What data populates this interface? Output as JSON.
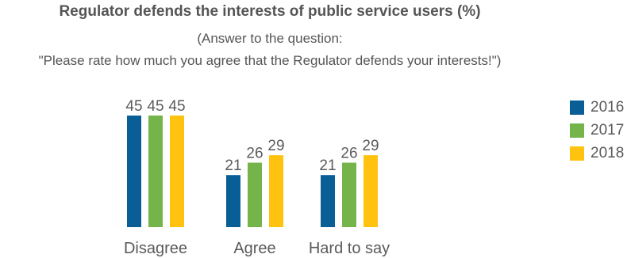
{
  "chart_data": {
    "type": "bar",
    "title": "Regulator defends the interests of public service users (%)",
    "subtitle_line1": "(Answer to the question:",
    "subtitle_line2": "\"Please rate how much you agree that the Regulator defends your interests!\")",
    "categories": [
      "Disagree",
      "Agree",
      "Hard to say"
    ],
    "series": [
      {
        "name": "2016",
        "color": "#0a5e96",
        "values": [
          45,
          21,
          21
        ]
      },
      {
        "name": "2017",
        "color": "#74b44a",
        "values": [
          45,
          26,
          26
        ]
      },
      {
        "name": "2018",
        "color": "#ffc20e",
        "values": [
          45,
          29,
          29
        ]
      }
    ],
    "ylim": [
      0,
      45
    ],
    "grid": false,
    "legend_position": "right"
  }
}
